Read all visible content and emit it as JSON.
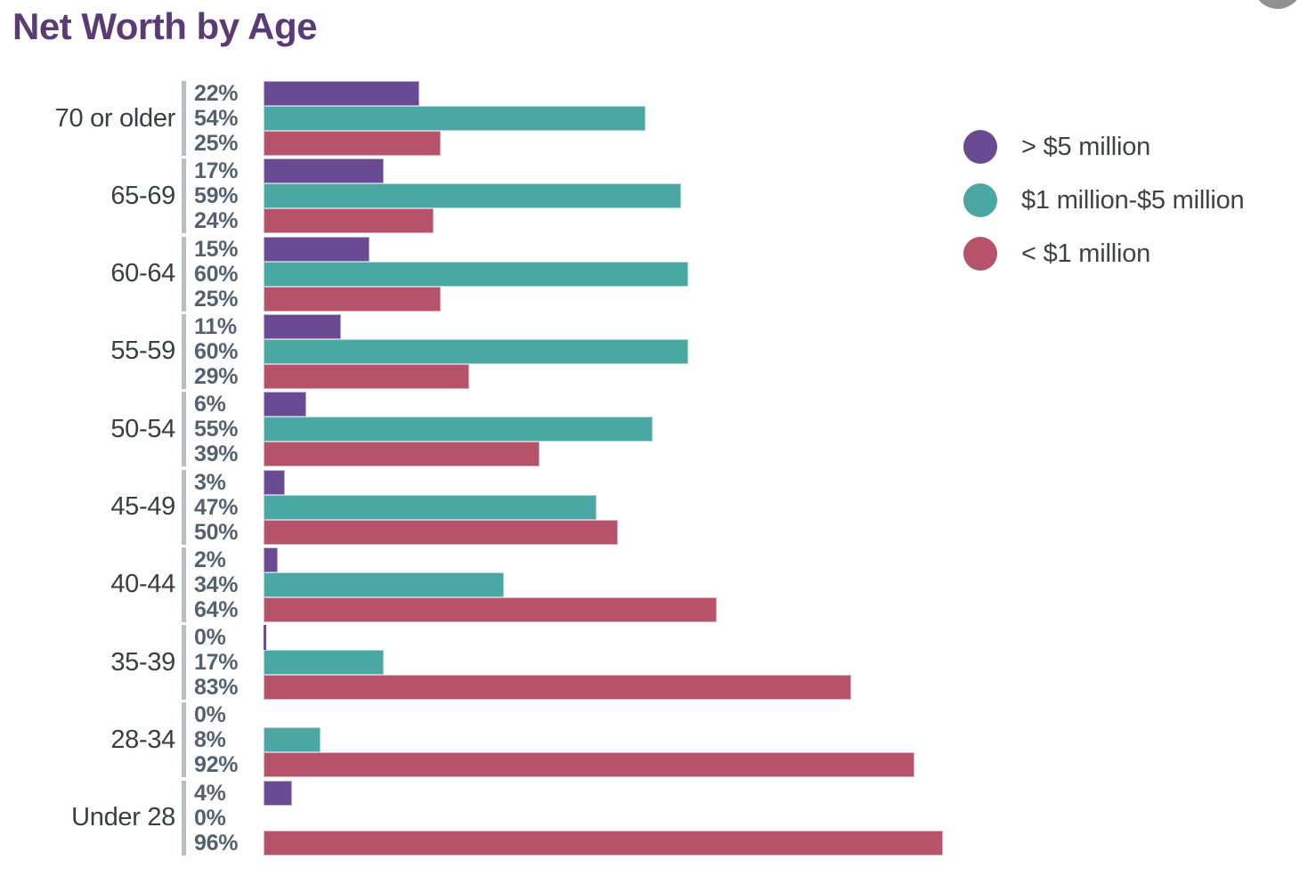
{
  "title": "Net Worth by Age",
  "value_suffix": "%",
  "colors": {
    "title": "#5a3b76",
    "value_label": "#546270",
    "age_label": "#3a3e41",
    "tick_line": "#b7bec4",
    "corner_circle": "#909090"
  },
  "legend": {
    "items": [
      {
        "label": "> $5 million",
        "color": "#6a4a92"
      },
      {
        "label": "$1 million-$5 million",
        "color": "#4ba7a4"
      },
      {
        "label": "< $1 million",
        "color": "#b6536a"
      }
    ]
  },
  "chart_data": {
    "type": "bar",
    "orientation": "horizontal",
    "title": "Net Worth by Age",
    "categories": [
      "70 or older",
      "65-69",
      "60-64",
      "55-59",
      "50-54",
      "45-49",
      "40-44",
      "35-39",
      "28-34",
      "Under 28"
    ],
    "series": [
      {
        "name": "> $5 million",
        "color": "#6a4a92",
        "values": [
          22,
          17,
          15,
          11,
          6,
          3,
          2,
          0,
          0,
          4
        ]
      },
      {
        "name": "$1 million-$5 million",
        "color": "#4ba7a4",
        "values": [
          54,
          59,
          60,
          60,
          55,
          47,
          34,
          17,
          8,
          0
        ]
      },
      {
        "name": "< $1 million",
        "color": "#b6536a",
        "values": [
          25,
          24,
          25,
          29,
          39,
          50,
          64,
          83,
          92,
          96
        ]
      }
    ],
    "value_labels": [
      [
        "22%",
        "54%",
        "25%"
      ],
      [
        "17%",
        "59%",
        "24%"
      ],
      [
        "15%",
        "60%",
        "25%"
      ],
      [
        "11%",
        "60%",
        "29%"
      ],
      [
        "6%",
        "55%",
        "39%"
      ],
      [
        "3%",
        "47%",
        "50%"
      ],
      [
        "2%",
        "34%",
        "64%"
      ],
      [
        "0%",
        "17%",
        "83%"
      ],
      [
        "0%",
        "8%",
        "92%"
      ],
      [
        "4%",
        "0%",
        "96%"
      ]
    ],
    "xlim": [
      0,
      100
    ],
    "grid": false,
    "legend_position": "right",
    "zero_slivers": [
      [
        7,
        0
      ]
    ]
  }
}
